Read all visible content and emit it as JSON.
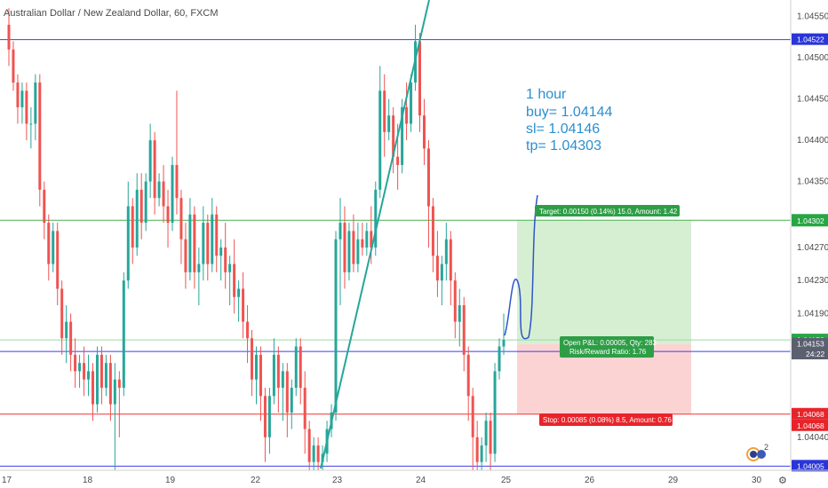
{
  "title": "Australian Dollar / New Zealand Dollar, 60, FXCM",
  "annotation": [
    "1 hour",
    "buy= 1.04144",
    "sl= 1.04146",
    "tp= 1.04303"
  ],
  "target_label": "Target: 0.00150 (0.14%) 15.0, Amount: 1.42",
  "pnl_label_1": "Open P&L: 0.00005, Qty: 283",
  "pnl_label_2": "Risk/Reward Ratio: 1.76",
  "stop_label": "Stop: 0.00085 (0.08%) 8.5, Amount: 0.76",
  "countdown": "24:22",
  "badge_count": "2",
  "colors": {
    "bull": "#26a69a",
    "bear": "#ef5350",
    "blue_line": "#3d3df0",
    "green_line": "#4caf50",
    "red_line": "#ef3434",
    "target_zone": "#d6efd3",
    "stop_zone": "#fbd3d3",
    "annotation": "#2a8fd0"
  },
  "chart_data": {
    "type": "candlestick",
    "x_tick_labels": [
      "17",
      "18",
      "19",
      "22",
      "23",
      "24",
      "25",
      "26",
      "29",
      "30"
    ],
    "y_tick_labels": [
      "1.04550",
      "1.04500",
      "1.04450",
      "1.04400",
      "1.04350",
      "1.04270",
      "1.04230",
      "1.04190",
      "1.04040"
    ],
    "ylim": [
      1.04,
      1.0457
    ],
    "horizontal_lines": [
      {
        "value": 1.04522,
        "label": "1.04522",
        "kind": "blue"
      },
      {
        "value": 1.04303,
        "label": "1.04303",
        "kind": "green"
      },
      {
        "value": 1.04158,
        "label": "1.04158",
        "kind": "green-light"
      },
      {
        "value": 1.04144,
        "label": "1.04144",
        "kind": "blue"
      },
      {
        "value": 1.04068,
        "label": "1.04068",
        "kind": "red"
      },
      {
        "value": 1.04005,
        "label": "1.04005",
        "kind": "blue"
      }
    ],
    "price_tags": [
      {
        "value": 1.04302,
        "label": "1.04302",
        "kind": "green"
      },
      {
        "value": 1.04153,
        "label": "1.04153",
        "kind": "gray"
      },
      {
        "value": 1.04068,
        "label": "1.04068",
        "kind": "red"
      }
    ],
    "position": {
      "entry": 1.04153,
      "target": 1.04303,
      "stop": 1.04068
    },
    "candles": [
      {
        "o": 1.0454,
        "h": 1.0456,
        "c": 1.0451,
        "l": 1.0449
      },
      {
        "o": 1.0451,
        "h": 1.0452,
        "c": 1.0447,
        "l": 1.0446
      },
      {
        "o": 1.0447,
        "h": 1.0448,
        "c": 1.0444,
        "l": 1.0442
      },
      {
        "o": 1.0444,
        "h": 1.0447,
        "c": 1.0446,
        "l": 1.0442
      },
      {
        "o": 1.0446,
        "h": 1.0447,
        "c": 1.0442,
        "l": 1.044
      },
      {
        "o": 1.0442,
        "h": 1.0444,
        "c": 1.0442,
        "l": 1.0439
      },
      {
        "o": 1.0442,
        "h": 1.0448,
        "c": 1.0447,
        "l": 1.044
      },
      {
        "o": 1.0447,
        "h": 1.0448,
        "c": 1.0434,
        "l": 1.0432
      },
      {
        "o": 1.0434,
        "h": 1.0435,
        "c": 1.043,
        "l": 1.0428
      },
      {
        "o": 1.043,
        "h": 1.0431,
        "c": 1.0425,
        "l": 1.0423
      },
      {
        "o": 1.0425,
        "h": 1.043,
        "c": 1.0429,
        "l": 1.0424
      },
      {
        "o": 1.0429,
        "h": 1.043,
        "c": 1.0422,
        "l": 1.042
      },
      {
        "o": 1.0422,
        "h": 1.0423,
        "c": 1.0416,
        "l": 1.0414
      },
      {
        "o": 1.0416,
        "h": 1.042,
        "c": 1.0418,
        "l": 1.0413
      },
      {
        "o": 1.0418,
        "h": 1.0419,
        "c": 1.0414,
        "l": 1.0412
      },
      {
        "o": 1.0414,
        "h": 1.0416,
        "c": 1.0412,
        "l": 1.041
      },
      {
        "o": 1.0412,
        "h": 1.0414,
        "c": 1.0413,
        "l": 1.041
      },
      {
        "o": 1.0413,
        "h": 1.0415,
        "c": 1.0411,
        "l": 1.0409
      },
      {
        "o": 1.0411,
        "h": 1.0414,
        "c": 1.0412,
        "l": 1.0409
      },
      {
        "o": 1.0412,
        "h": 1.0413,
        "c": 1.0408,
        "l": 1.0406
      },
      {
        "o": 1.0408,
        "h": 1.0415,
        "c": 1.0414,
        "l": 1.0407
      },
      {
        "o": 1.0414,
        "h": 1.0415,
        "c": 1.041,
        "l": 1.0408
      },
      {
        "o": 1.041,
        "h": 1.0414,
        "c": 1.0413,
        "l": 1.0409
      },
      {
        "o": 1.0413,
        "h": 1.0414,
        "c": 1.0408,
        "l": 1.0406
      },
      {
        "o": 1.0408,
        "h": 1.0413,
        "c": 1.0411,
        "l": 1.04
      },
      {
        "o": 1.0411,
        "h": 1.0412,
        "c": 1.041,
        "l": 1.0404
      },
      {
        "o": 1.041,
        "h": 1.0424,
        "c": 1.0423,
        "l": 1.0409
      },
      {
        "o": 1.0423,
        "h": 1.0435,
        "c": 1.0432,
        "l": 1.0422
      },
      {
        "o": 1.0432,
        "h": 1.0433,
        "c": 1.0427,
        "l": 1.0425
      },
      {
        "o": 1.0427,
        "h": 1.0436,
        "c": 1.0434,
        "l": 1.0426
      },
      {
        "o": 1.0434,
        "h": 1.0436,
        "c": 1.043,
        "l": 1.0428
      },
      {
        "o": 1.043,
        "h": 1.0436,
        "c": 1.0435,
        "l": 1.0429
      },
      {
        "o": 1.0435,
        "h": 1.0442,
        "c": 1.044,
        "l": 1.0433
      },
      {
        "o": 1.044,
        "h": 1.0441,
        "c": 1.0433,
        "l": 1.0431
      },
      {
        "o": 1.0433,
        "h": 1.0436,
        "c": 1.0435,
        "l": 1.0432
      },
      {
        "o": 1.0435,
        "h": 1.0437,
        "c": 1.0432,
        "l": 1.043
      },
      {
        "o": 1.0432,
        "h": 1.0434,
        "c": 1.043,
        "l": 1.0427
      },
      {
        "o": 1.043,
        "h": 1.0438,
        "c": 1.0437,
        "l": 1.0429
      },
      {
        "o": 1.0437,
        "h": 1.0446,
        "c": 1.0433,
        "l": 1.0431
      },
      {
        "o": 1.0433,
        "h": 1.0434,
        "c": 1.0428,
        "l": 1.0425
      },
      {
        "o": 1.0428,
        "h": 1.043,
        "c": 1.0424,
        "l": 1.0422
      },
      {
        "o": 1.0424,
        "h": 1.0433,
        "c": 1.0431,
        "l": 1.0423
      },
      {
        "o": 1.0431,
        "h": 1.0432,
        "c": 1.0424,
        "l": 1.0422
      },
      {
        "o": 1.0424,
        "h": 1.0427,
        "c": 1.0425,
        "l": 1.042
      },
      {
        "o": 1.0425,
        "h": 1.0432,
        "c": 1.043,
        "l": 1.0423
      },
      {
        "o": 1.043,
        "h": 1.0431,
        "c": 1.0425,
        "l": 1.0423
      },
      {
        "o": 1.0425,
        "h": 1.0433,
        "c": 1.0431,
        "l": 1.0424
      },
      {
        "o": 1.0431,
        "h": 1.0432,
        "c": 1.0426,
        "l": 1.0424
      },
      {
        "o": 1.0426,
        "h": 1.0428,
        "c": 1.0427,
        "l": 1.0423
      },
      {
        "o": 1.0427,
        "h": 1.043,
        "c": 1.0424,
        "l": 1.0422
      },
      {
        "o": 1.0424,
        "h": 1.0426,
        "c": 1.0425,
        "l": 1.042
      },
      {
        "o": 1.0425,
        "h": 1.0428,
        "c": 1.0421,
        "l": 1.0419
      },
      {
        "o": 1.0421,
        "h": 1.0423,
        "c": 1.0422,
        "l": 1.0418
      },
      {
        "o": 1.0422,
        "h": 1.0424,
        "c": 1.0418,
        "l": 1.0416
      },
      {
        "o": 1.0418,
        "h": 1.042,
        "c": 1.0416,
        "l": 1.0413
      },
      {
        "o": 1.0416,
        "h": 1.0417,
        "c": 1.0411,
        "l": 1.0409
      },
      {
        "o": 1.0411,
        "h": 1.0415,
        "c": 1.0414,
        "l": 1.0408
      },
      {
        "o": 1.0414,
        "h": 1.0415,
        "c": 1.0409,
        "l": 1.0406
      },
      {
        "o": 1.0409,
        "h": 1.041,
        "c": 1.0404,
        "l": 1.0401
      },
      {
        "o": 1.0404,
        "h": 1.041,
        "c": 1.0409,
        "l": 1.0402
      },
      {
        "o": 1.0409,
        "h": 1.0416,
        "c": 1.0414,
        "l": 1.0408
      },
      {
        "o": 1.0414,
        "h": 1.0415,
        "c": 1.041,
        "l": 1.0407
      },
      {
        "o": 1.041,
        "h": 1.0413,
        "c": 1.0412,
        "l": 1.0406
      },
      {
        "o": 1.0412,
        "h": 1.0413,
        "c": 1.0407,
        "l": 1.0404
      },
      {
        "o": 1.0407,
        "h": 1.0411,
        "c": 1.041,
        "l": 1.0405
      },
      {
        "o": 1.041,
        "h": 1.0416,
        "c": 1.0415,
        "l": 1.0409
      },
      {
        "o": 1.0415,
        "h": 1.0416,
        "c": 1.041,
        "l": 1.0408
      },
      {
        "o": 1.041,
        "h": 1.0412,
        "c": 1.0405,
        "l": 1.0402
      },
      {
        "o": 1.0405,
        "h": 1.0406,
        "c": 1.0401,
        "l": 1.04
      },
      {
        "o": 1.0401,
        "h": 1.0404,
        "c": 1.0403,
        "l": 1.04
      },
      {
        "o": 1.0403,
        "h": 1.0404,
        "c": 1.0401,
        "l": 1.04
      },
      {
        "o": 1.0401,
        "h": 1.0403,
        "c": 1.0402,
        "l": 1.04
      },
      {
        "o": 1.0402,
        "h": 1.0406,
        "c": 1.0405,
        "l": 1.0401
      },
      {
        "o": 1.0405,
        "h": 1.0408,
        "c": 1.0407,
        "l": 1.0404
      },
      {
        "o": 1.0407,
        "h": 1.0429,
        "c": 1.0428,
        "l": 1.0406
      },
      {
        "o": 1.0428,
        "h": 1.0433,
        "c": 1.043,
        "l": 1.042
      },
      {
        "o": 1.043,
        "h": 1.0432,
        "c": 1.0424,
        "l": 1.0422
      },
      {
        "o": 1.0424,
        "h": 1.043,
        "c": 1.0429,
        "l": 1.0423
      },
      {
        "o": 1.0429,
        "h": 1.0431,
        "c": 1.0425,
        "l": 1.0424
      },
      {
        "o": 1.0425,
        "h": 1.043,
        "c": 1.0428,
        "l": 1.0424
      },
      {
        "o": 1.0428,
        "h": 1.043,
        "c": 1.0427,
        "l": 1.0426
      },
      {
        "o": 1.0427,
        "h": 1.043,
        "c": 1.0429,
        "l": 1.0426
      },
      {
        "o": 1.0429,
        "h": 1.0432,
        "c": 1.0427,
        "l": 1.0425
      },
      {
        "o": 1.0427,
        "h": 1.0435,
        "c": 1.0434,
        "l": 1.0426
      },
      {
        "o": 1.0434,
        "h": 1.0449,
        "c": 1.0446,
        "l": 1.0433
      },
      {
        "o": 1.0446,
        "h": 1.0448,
        "c": 1.0441,
        "l": 1.0438
      },
      {
        "o": 1.0441,
        "h": 1.0445,
        "c": 1.0443,
        "l": 1.044
      },
      {
        "o": 1.0443,
        "h": 1.0444,
        "c": 1.0438,
        "l": 1.0436
      },
      {
        "o": 1.0438,
        "h": 1.0442,
        "c": 1.0437,
        "l": 1.0434
      },
      {
        "o": 1.0437,
        "h": 1.0445,
        "c": 1.0444,
        "l": 1.0436
      },
      {
        "o": 1.0444,
        "h": 1.0447,
        "c": 1.0442,
        "l": 1.044
      },
      {
        "o": 1.0442,
        "h": 1.0448,
        "c": 1.0447,
        "l": 1.0441
      },
      {
        "o": 1.0447,
        "h": 1.0454,
        "c": 1.0452,
        "l": 1.0446
      },
      {
        "o": 1.0452,
        "h": 1.0453,
        "c": 1.0443,
        "l": 1.0441
      },
      {
        "o": 1.0443,
        "h": 1.0445,
        "c": 1.0439,
        "l": 1.0437
      },
      {
        "o": 1.0439,
        "h": 1.044,
        "c": 1.0432,
        "l": 1.0427
      },
      {
        "o": 1.0432,
        "h": 1.0433,
        "c": 1.0426,
        "l": 1.0424
      },
      {
        "o": 1.0426,
        "h": 1.0429,
        "c": 1.0423,
        "l": 1.0421
      },
      {
        "o": 1.0423,
        "h": 1.0426,
        "c": 1.0425,
        "l": 1.042
      },
      {
        "o": 1.0425,
        "h": 1.043,
        "c": 1.0428,
        "l": 1.0423
      },
      {
        "o": 1.0428,
        "h": 1.0429,
        "c": 1.0423,
        "l": 1.042
      },
      {
        "o": 1.0423,
        "h": 1.0424,
        "c": 1.0418,
        "l": 1.0416
      },
      {
        "o": 1.0418,
        "h": 1.0422,
        "c": 1.042,
        "l": 1.0415
      },
      {
        "o": 1.042,
        "h": 1.0421,
        "c": 1.0414,
        "l": 1.0412
      },
      {
        "o": 1.0414,
        "h": 1.0415,
        "c": 1.0409,
        "l": 1.0406
      },
      {
        "o": 1.0409,
        "h": 1.041,
        "c": 1.0404,
        "l": 1.04
      },
      {
        "o": 1.0404,
        "h": 1.0406,
        "c": 1.0401,
        "l": 1.04
      },
      {
        "o": 1.0401,
        "h": 1.0404,
        "c": 1.0403,
        "l": 1.04
      },
      {
        "o": 1.0403,
        "h": 1.0407,
        "c": 1.0406,
        "l": 1.0401
      },
      {
        "o": 1.0406,
        "h": 1.0407,
        "c": 1.0402,
        "l": 1.04
      },
      {
        "o": 1.0402,
        "h": 1.0413,
        "c": 1.0412,
        "l": 1.0401
      },
      {
        "o": 1.0412,
        "h": 1.0416,
        "c": 1.0415,
        "l": 1.0411
      },
      {
        "o": 1.0415,
        "h": 1.0419,
        "c": 1.04158,
        "l": 1.0414
      }
    ]
  }
}
